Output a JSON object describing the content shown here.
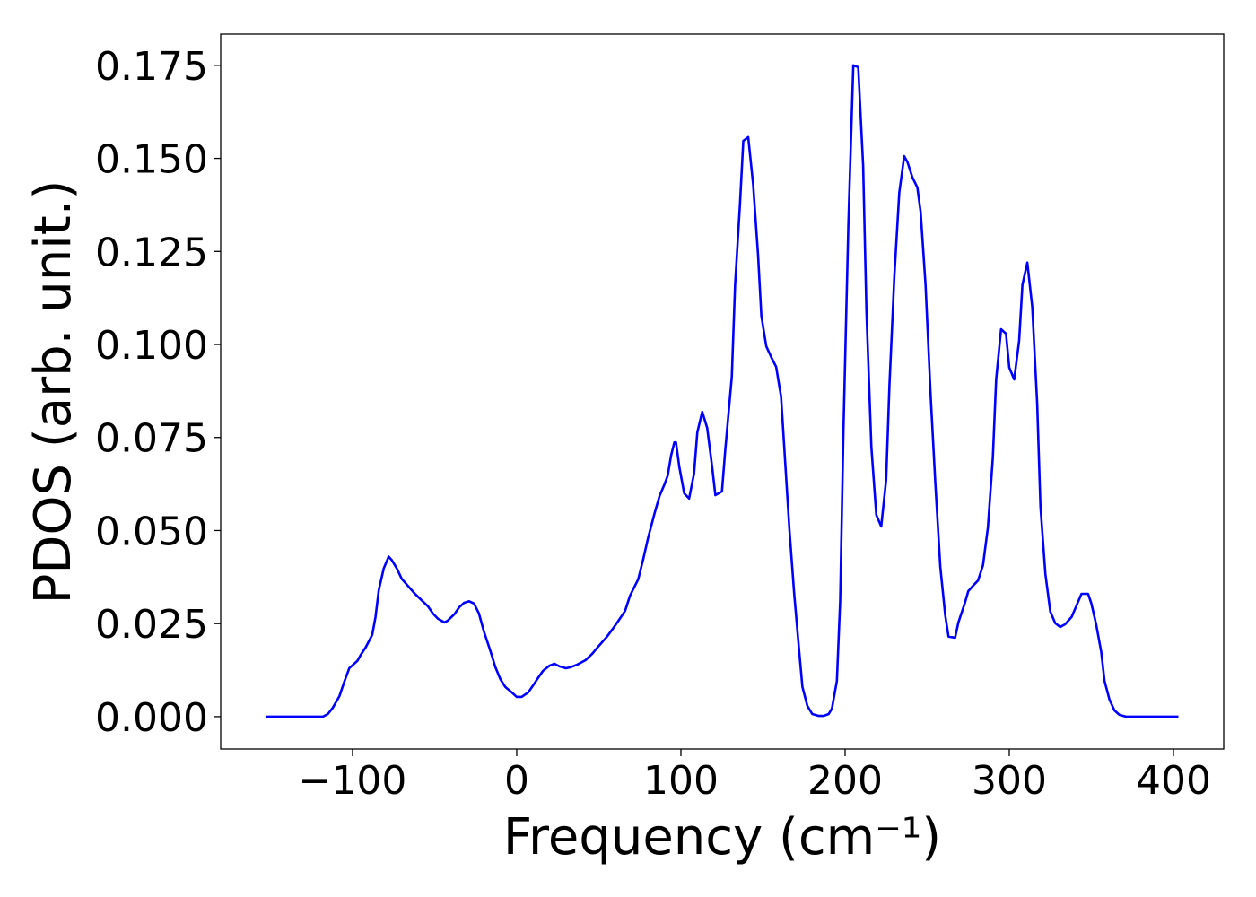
{
  "chart_data": {
    "type": "line",
    "xlabel": "Frequency (cm⁻¹)",
    "ylabel": "PDOS (arb. unit.)",
    "color": "#0000ff",
    "x": [
      -153,
      -118,
      -115,
      -112,
      -108,
      -105,
      -102,
      -97,
      -95,
      -92,
      -88,
      -86,
      -84,
      -81,
      -78,
      -76,
      -73,
      -70,
      -66,
      -62,
      -58,
      -54,
      -51,
      -48,
      -44,
      -42,
      -38,
      -35,
      -32,
      -29,
      -26,
      -23,
      -20,
      -16,
      -13,
      -10,
      -7,
      -3,
      0,
      3,
      7,
      10,
      13,
      16,
      20,
      23,
      26,
      30,
      33,
      37,
      42,
      46,
      50,
      55,
      59,
      62,
      66,
      69,
      74,
      77,
      80,
      84,
      87,
      90,
      92,
      94,
      96,
      97,
      99,
      102,
      105,
      108,
      110,
      113,
      116,
      119,
      121,
      125,
      127,
      131,
      133,
      136,
      138,
      141,
      144,
      147,
      149,
      152,
      155,
      158,
      161,
      163,
      166,
      169,
      172,
      174,
      177,
      180,
      184,
      187,
      190,
      192,
      195,
      197,
      199,
      202,
      205,
      208,
      211,
      213,
      216,
      219,
      222,
      225,
      227,
      230,
      233,
      236,
      238,
      241,
      244,
      246,
      249,
      252,
      255,
      258,
      261,
      263,
      267,
      269,
      273,
      275,
      278,
      281,
      284,
      287,
      290,
      292,
      295,
      298,
      300,
      303,
      306,
      308,
      311,
      314,
      317,
      319,
      322,
      325,
      328,
      331,
      334,
      338,
      341,
      344,
      348,
      350,
      353,
      356,
      358,
      361,
      364,
      367,
      371,
      403
    ],
    "values": [
      0,
      0,
      0.0007,
      0.0024,
      0.0055,
      0.0094,
      0.013,
      0.015,
      0.0166,
      0.0186,
      0.022,
      0.0268,
      0.034,
      0.0398,
      0.043,
      0.042,
      0.0398,
      0.037,
      0.035,
      0.033,
      0.0313,
      0.0296,
      0.0277,
      0.0263,
      0.0253,
      0.0258,
      0.0275,
      0.0294,
      0.0306,
      0.031,
      0.0304,
      0.0277,
      0.0229,
      0.0176,
      0.0133,
      0.0101,
      0.008,
      0.0065,
      0.0053,
      0.0053,
      0.0065,
      0.0084,
      0.0104,
      0.0123,
      0.0137,
      0.0142,
      0.0135,
      0.013,
      0.0133,
      0.014,
      0.0152,
      0.0169,
      0.019,
      0.0215,
      0.0239,
      0.0258,
      0.0284,
      0.0325,
      0.0369,
      0.0422,
      0.048,
      0.0547,
      0.0593,
      0.0624,
      0.0648,
      0.0701,
      0.0737,
      0.0737,
      0.0672,
      0.06,
      0.0586,
      0.0653,
      0.0764,
      0.0819,
      0.0776,
      0.0672,
      0.0595,
      0.0605,
      0.0716,
      0.0913,
      0.116,
      0.1379,
      0.1547,
      0.1557,
      0.143,
      0.124,
      0.1077,
      0.0995,
      0.0966,
      0.094,
      0.086,
      0.072,
      0.0509,
      0.033,
      0.0178,
      0.008,
      0.0029,
      0.0007,
      0.0002,
      0.0002,
      0.0007,
      0.0022,
      0.0096,
      0.0311,
      0.0769,
      0.1323,
      0.175,
      0.1745,
      0.148,
      0.109,
      0.0725,
      0.0542,
      0.0511,
      0.0636,
      0.0889,
      0.1183,
      0.1408,
      0.1506,
      0.149,
      0.1449,
      0.1422,
      0.1357,
      0.116,
      0.0872,
      0.0624,
      0.0402,
      0.0272,
      0.0215,
      0.0212,
      0.0253,
      0.0306,
      0.0337,
      0.0352,
      0.0366,
      0.0407,
      0.0509,
      0.0697,
      0.0906,
      0.1041,
      0.1029,
      0.0938,
      0.0906,
      0.101,
      0.116,
      0.122,
      0.1101,
      0.0841,
      0.0564,
      0.0383,
      0.0282,
      0.0251,
      0.0241,
      0.0248,
      0.0268,
      0.0299,
      0.033,
      0.033,
      0.0304,
      0.0246,
      0.0174,
      0.0096,
      0.0046,
      0.0017,
      0.0005,
      0,
      0
    ],
    "xlim": [
      -180.3,
      430.6
    ],
    "ylim": [
      -0.0087,
      0.1834
    ],
    "xticks": [
      {
        "value": -100,
        "label": "−100"
      },
      0,
      100,
      200,
      300,
      400
    ],
    "yticks": [
      {
        "value": 0,
        "label": "0.000"
      },
      {
        "value": 0.025,
        "label": "0.025"
      },
      {
        "value": 0.05,
        "label": "0.050"
      },
      {
        "value": 0.075,
        "label": "0.075"
      },
      {
        "value": 0.1,
        "label": "0.100"
      },
      {
        "value": 0.125,
        "label": "0.125"
      },
      {
        "value": 0.15,
        "label": "0.150"
      },
      {
        "value": 0.175,
        "label": "0.175"
      }
    ]
  }
}
